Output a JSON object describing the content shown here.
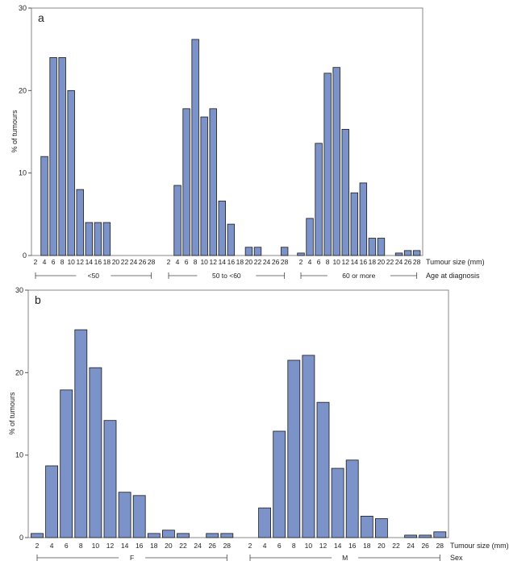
{
  "chart_data": [
    {
      "type": "bar",
      "panel_label": "a",
      "ylabel": "% of tumours",
      "xlabel": "Tumour size (mm)",
      "group_axis_label": "Age at diagnosis",
      "ylim": [
        0,
        30
      ],
      "yticks": [
        0,
        10,
        20,
        30
      ],
      "bar_color": "#7b93c8",
      "bar_edge_color": "#1a1a1a",
      "categories": [
        "2",
        "4",
        "6",
        "8",
        "10",
        "12",
        "14",
        "16",
        "18",
        "20",
        "22",
        "24",
        "26",
        "28"
      ],
      "groups": [
        {
          "name": "<50",
          "values": [
            0,
            12,
            24,
            24,
            20,
            8,
            4,
            4,
            4,
            0,
            0,
            0,
            0,
            0
          ]
        },
        {
          "name": "50 to <60",
          "values": [
            0,
            8.5,
            17.8,
            26.2,
            16.8,
            17.8,
            6.6,
            3.8,
            0,
            1,
            1,
            0,
            0,
            1
          ]
        },
        {
          "name": "60 or more",
          "values": [
            0.3,
            4.5,
            13.6,
            22.1,
            22.8,
            15.3,
            7.6,
            8.8,
            2.1,
            2.1,
            0,
            0.3,
            0.6,
            0.6
          ]
        }
      ]
    },
    {
      "type": "bar",
      "panel_label": "b",
      "ylabel": "% of tumours",
      "xlabel": "Tumour size (mm)",
      "group_axis_label": "Sex",
      "ylim": [
        0,
        30
      ],
      "yticks": [
        0,
        10,
        20,
        30
      ],
      "bar_color": "#7b93c8",
      "bar_edge_color": "#1a1a1a",
      "categories": [
        "2",
        "4",
        "6",
        "8",
        "10",
        "12",
        "14",
        "16",
        "18",
        "20",
        "22",
        "24",
        "26",
        "28"
      ],
      "groups": [
        {
          "name": "F",
          "values": [
            0.5,
            8.7,
            17.9,
            25.2,
            20.6,
            14.2,
            5.5,
            5.1,
            0.5,
            0.9,
            0.5,
            0,
            0.5,
            0.5
          ]
        },
        {
          "name": "M",
          "values": [
            0,
            3.6,
            12.9,
            21.5,
            22.1,
            16.4,
            8.4,
            9.4,
            2.6,
            2.3,
            0,
            0.3,
            0.3,
            0.7
          ]
        }
      ]
    }
  ]
}
